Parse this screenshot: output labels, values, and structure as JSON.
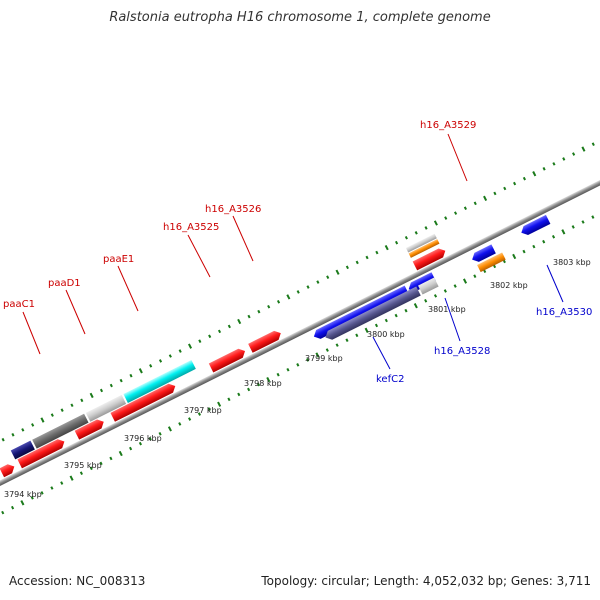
{
  "header": {
    "title": "Ralstonia eutropha H16 chromosome 1, complete genome"
  },
  "footer": {
    "accession": "Accession: NC_008313",
    "summary": "Topology: circular; Length: 4,052,032 bp; Genes: 3,711"
  },
  "colors": {
    "forward_gene": "#ff0000",
    "reverse_gene": "#0000ee",
    "forward_label": "#cc0000",
    "reverse_label": "#0000cc",
    "backbone": "#888888",
    "tick": "#1a7a1a"
  },
  "kbp_labels": [
    "3794 kbp",
    "3795 kbp",
    "3796 kbp",
    "3797 kbp",
    "3798 kbp",
    "3799 kbp",
    "3800 kbp",
    "3801 kbp",
    "3802 kbp",
    "3803 kbp"
  ],
  "forward_labels": [
    "paaC1",
    "paaD1",
    "paaE1",
    "h16_A3525",
    "h16_A3526",
    "h16_A3529"
  ],
  "reverse_labels": [
    "kefC2",
    "h16_A3528",
    "h16_A3530"
  ]
}
